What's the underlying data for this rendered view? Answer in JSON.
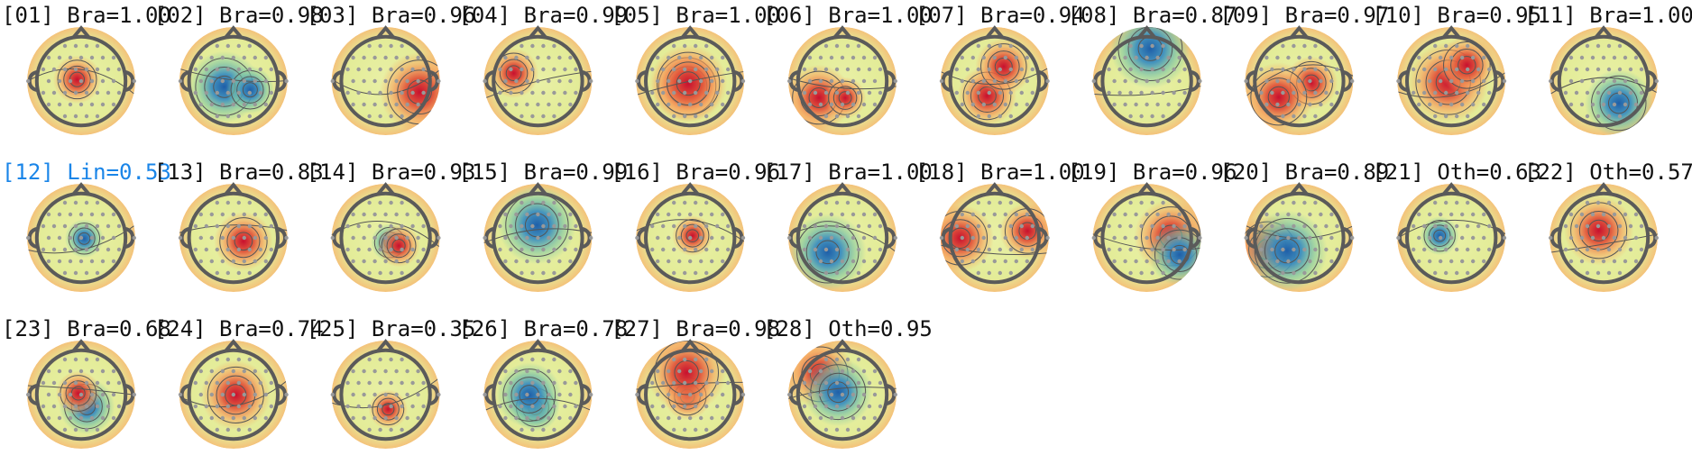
{
  "components": [
    {
      "label": "[01] Bra=1.00"
    },
    {
      "label": "[02] Bra=0.98"
    },
    {
      "label": "[03] Bra=0.96"
    },
    {
      "label": "[04] Bra=0.99"
    },
    {
      "label": "[05] Bra=1.00"
    },
    {
      "label": "[06] Bra=1.00"
    },
    {
      "label": "[07] Bra=0.94"
    },
    {
      "label": "[08] Bra=0.87"
    },
    {
      "label": "[09] Bra=0.97"
    },
    {
      "label": "[10] Bra=0.95"
    },
    {
      "label": "[11] Bra=1.00"
    },
    {
      "label": "[12] Lin=0.53",
      "color": "#1a85e8"
    },
    {
      "label": "[13] Bra=0.83"
    },
    {
      "label": "[14] Bra=0.93"
    },
    {
      "label": "[15] Bra=0.99"
    },
    {
      "label": "[16] Bra=0.96"
    },
    {
      "label": "[17] Bra=1.00"
    },
    {
      "label": "[18] Bra=1.00"
    },
    {
      "label": "[19] Bra=0.96"
    },
    {
      "label": "[20] Bra=0.89"
    },
    {
      "label": "[21] Oth=0.63"
    },
    {
      "label": "[22] Oth=0.57"
    },
    {
      "label": "[23] Bra=0.68"
    },
    {
      "label": "[24] Bra=0.74"
    },
    {
      "label": "[25] Bra=0.35"
    },
    {
      "label": "[26] Bra=0.78"
    },
    {
      "label": "[27] Bra=0.98"
    },
    {
      "label": "[28] Oth=0.95"
    }
  ]
}
